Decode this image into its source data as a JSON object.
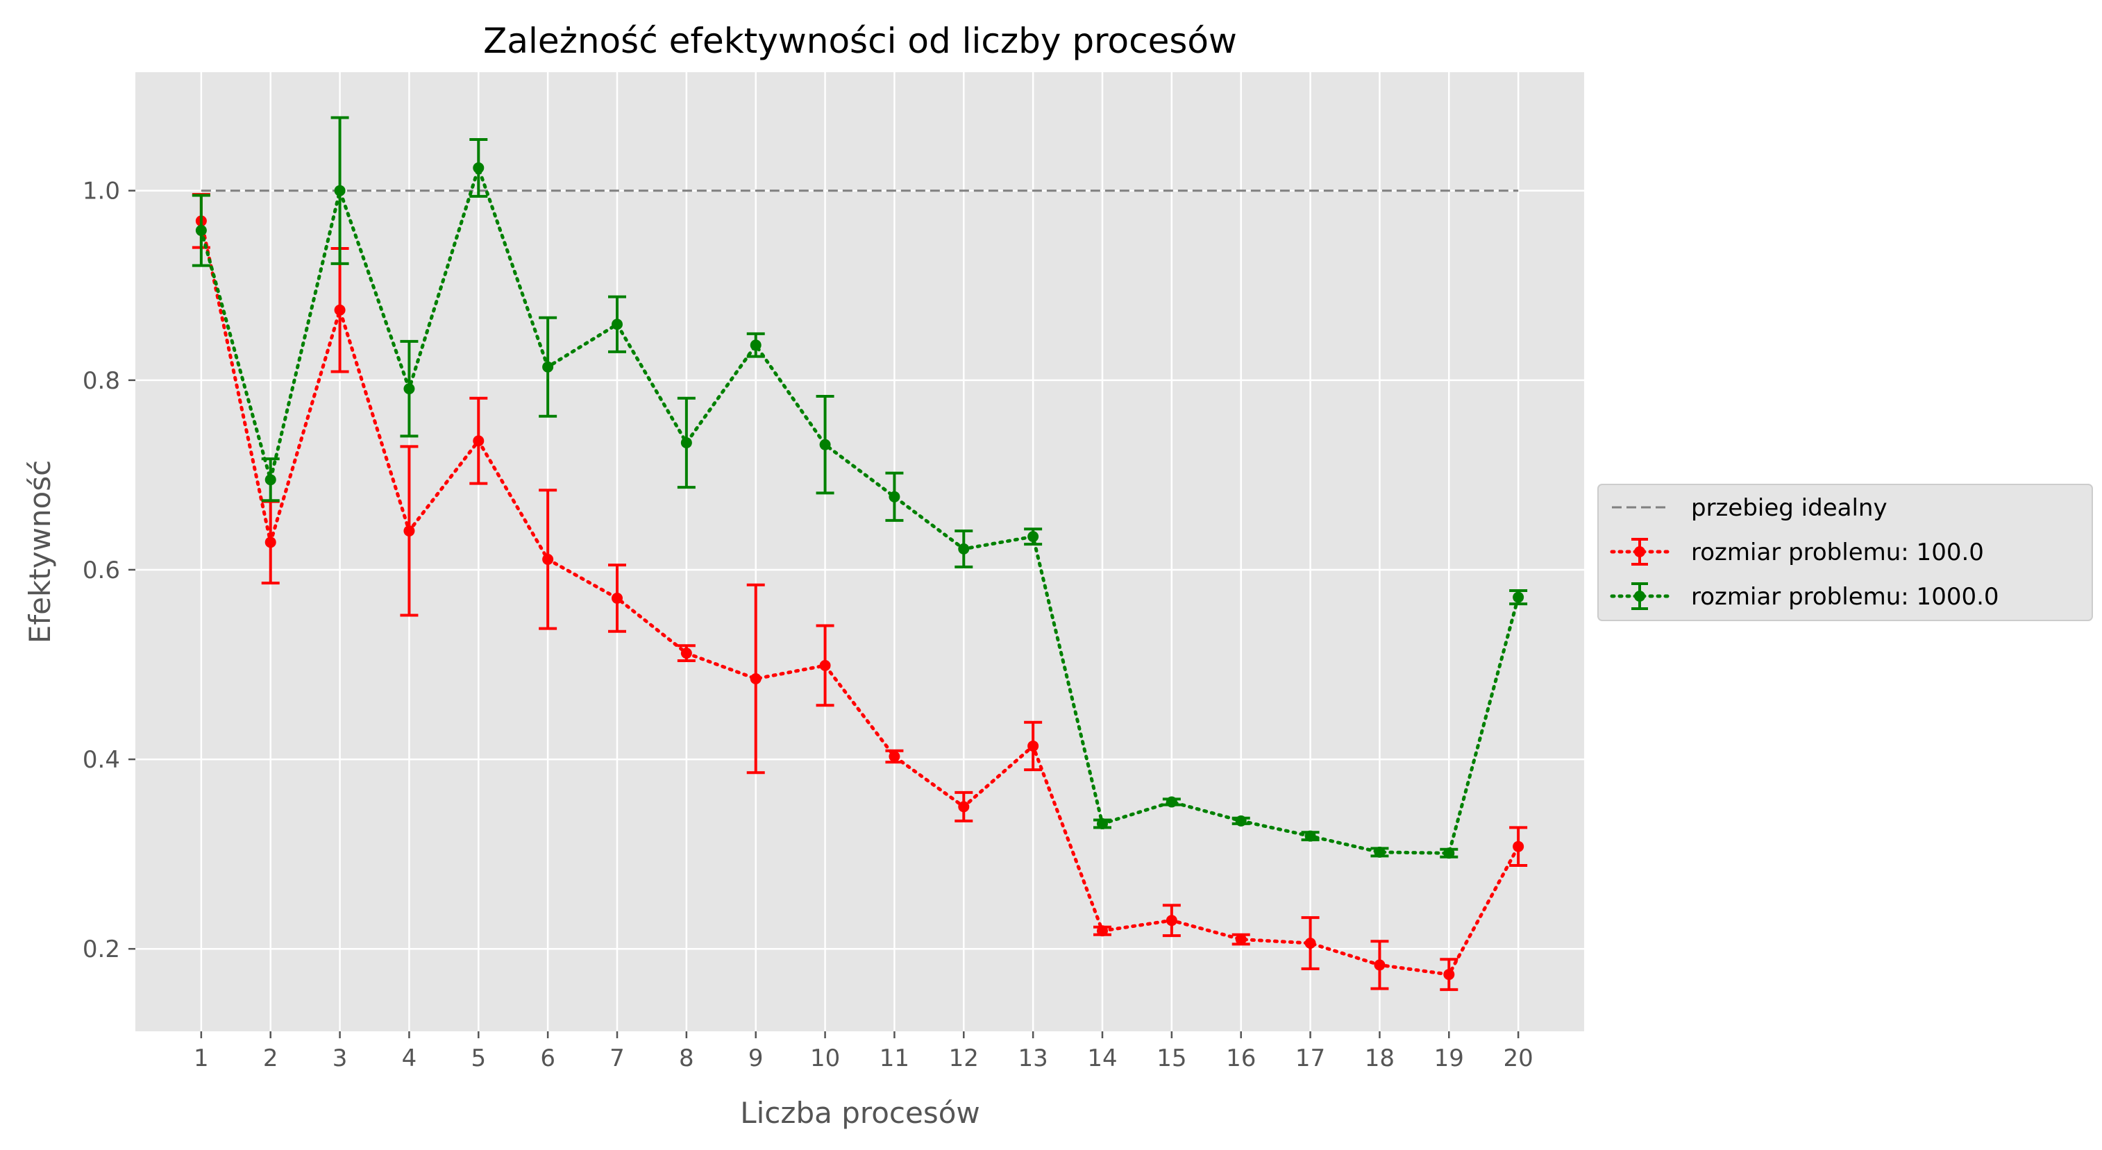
{
  "chart_data": {
    "type": "line",
    "title": "Zależność efektywności od liczby procesów",
    "xlabel": "Liczba procesów",
    "ylabel": "Efektywność",
    "x": [
      1,
      2,
      3,
      4,
      5,
      6,
      7,
      8,
      9,
      10,
      11,
      12,
      13,
      14,
      15,
      16,
      17,
      18,
      19,
      20
    ],
    "xlim": [
      0.05,
      20.95
    ],
    "ylim": [
      0.113,
      1.125
    ],
    "yticks": [
      0.2,
      0.4,
      0.6,
      0.8,
      1.0
    ],
    "ytick_labels": [
      "0.2",
      "0.4",
      "0.6",
      "0.8",
      "1.0"
    ],
    "grid": true,
    "legend_position": "outside-right",
    "background": "#e5e5e5",
    "ideal": {
      "name": "przebieg idealny",
      "y": 1.0,
      "x_range": [
        1,
        20
      ],
      "color": "#808080",
      "style": "dashed"
    },
    "series": [
      {
        "name": "rozmiar problemu: 100.0",
        "color": "#ff0000",
        "style": "dotted",
        "values": [
          0.968,
          0.629,
          0.874,
          0.641,
          0.736,
          0.611,
          0.57,
          0.512,
          0.485,
          0.499,
          0.403,
          0.35,
          0.414,
          0.219,
          0.23,
          0.21,
          0.206,
          0.183,
          0.173,
          0.308
        ],
        "errors": [
          0.028,
          0.043,
          0.065,
          0.089,
          0.045,
          0.073,
          0.035,
          0.008,
          0.099,
          0.042,
          0.006,
          0.015,
          0.025,
          0.004,
          0.016,
          0.005,
          0.027,
          0.025,
          0.016,
          0.02
        ]
      },
      {
        "name": "rozmiar problemu: 1000.0",
        "color": "#008000",
        "style": "dotted",
        "values": [
          0.958,
          0.695,
          1.0,
          0.791,
          1.024,
          0.814,
          0.859,
          0.734,
          0.837,
          0.732,
          0.677,
          0.622,
          0.635,
          0.332,
          0.355,
          0.335,
          0.319,
          0.302,
          0.301,
          0.571
        ],
        "errors": [
          0.037,
          0.022,
          0.077,
          0.05,
          0.03,
          0.052,
          0.029,
          0.047,
          0.012,
          0.051,
          0.025,
          0.019,
          0.008,
          0.004,
          0.003,
          0.003,
          0.004,
          0.004,
          0.004,
          0.007
        ]
      }
    ]
  }
}
